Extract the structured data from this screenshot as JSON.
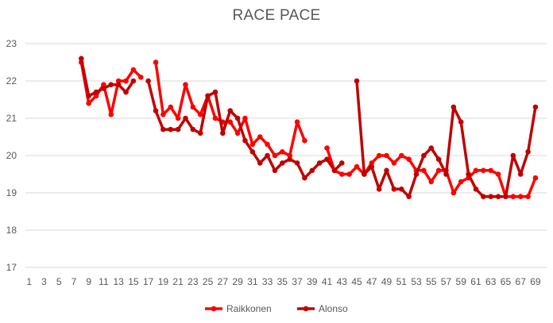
{
  "chart_data": {
    "type": "line",
    "title": "RACE PACE",
    "xlabel": "",
    "ylabel": "",
    "xlim": [
      1,
      70
    ],
    "ylim": [
      17,
      23
    ],
    "y_ticks": [
      17,
      18,
      19,
      20,
      21,
      22,
      23
    ],
    "x_tick_labels": [
      1,
      3,
      5,
      7,
      9,
      11,
      13,
      15,
      17,
      19,
      21,
      23,
      25,
      27,
      29,
      31,
      33,
      35,
      37,
      39,
      41,
      43,
      45,
      47,
      49,
      51,
      53,
      55,
      57,
      59,
      61,
      63,
      65,
      67,
      69
    ],
    "grid": "horizontal",
    "legend_position": "bottom",
    "series": [
      {
        "name": "Raikkonen",
        "color": "#ff0000",
        "points": [
          [
            8,
            22.5
          ],
          [
            9,
            21.4
          ],
          [
            10,
            21.6
          ],
          [
            11,
            21.9
          ],
          [
            12,
            21.1
          ],
          [
            13,
            22.0
          ],
          [
            14,
            22.0
          ],
          [
            15,
            22.3
          ],
          [
            16,
            22.1
          ],
          [
            18,
            22.5
          ],
          [
            19,
            21.1
          ],
          [
            20,
            21.3
          ],
          [
            21,
            21.0
          ],
          [
            22,
            21.9
          ],
          [
            23,
            21.3
          ],
          [
            24,
            21.1
          ],
          [
            25,
            21.6
          ],
          [
            26,
            21.0
          ],
          [
            27,
            20.9
          ],
          [
            28,
            20.9
          ],
          [
            29,
            20.6
          ],
          [
            30,
            21.0
          ],
          [
            31,
            20.3
          ],
          [
            32,
            20.5
          ],
          [
            33,
            20.3
          ],
          [
            34,
            20.0
          ],
          [
            35,
            20.1
          ],
          [
            36,
            20.0
          ],
          [
            37,
            20.9
          ],
          [
            38,
            20.4
          ],
          [
            41,
            20.2
          ],
          [
            42,
            19.6
          ],
          [
            43,
            19.5
          ],
          [
            44,
            19.5
          ],
          [
            45,
            19.7
          ],
          [
            46,
            19.5
          ],
          [
            47,
            19.8
          ],
          [
            48,
            20.0
          ],
          [
            49,
            20.0
          ],
          [
            50,
            19.8
          ],
          [
            51,
            20.0
          ],
          [
            52,
            19.9
          ],
          [
            53,
            19.6
          ],
          [
            54,
            19.6
          ],
          [
            55,
            19.3
          ],
          [
            56,
            19.6
          ],
          [
            57,
            19.6
          ],
          [
            58,
            19.0
          ],
          [
            59,
            19.3
          ],
          [
            60,
            19.4
          ],
          [
            61,
            19.6
          ],
          [
            62,
            19.6
          ],
          [
            63,
            19.6
          ],
          [
            64,
            19.5
          ],
          [
            65,
            18.9
          ],
          [
            66,
            18.9
          ],
          [
            67,
            18.9
          ],
          [
            68,
            18.9
          ],
          [
            69,
            19.4
          ]
        ]
      },
      {
        "name": "Alonso",
        "color": "#c00000",
        "points": [
          [
            8,
            22.6
          ],
          [
            9,
            21.6
          ],
          [
            10,
            21.7
          ],
          [
            11,
            21.8
          ],
          [
            12,
            21.9
          ],
          [
            13,
            21.9
          ],
          [
            14,
            21.7
          ],
          [
            15,
            22.0
          ],
          [
            17,
            22.0
          ],
          [
            18,
            21.2
          ],
          [
            19,
            20.7
          ],
          [
            20,
            20.7
          ],
          [
            21,
            20.7
          ],
          [
            22,
            21.0
          ],
          [
            23,
            20.7
          ],
          [
            24,
            20.6
          ],
          [
            25,
            21.6
          ],
          [
            26,
            21.7
          ],
          [
            27,
            20.6
          ],
          [
            28,
            21.2
          ],
          [
            29,
            21.0
          ],
          [
            30,
            20.4
          ],
          [
            31,
            20.1
          ],
          [
            32,
            19.8
          ],
          [
            33,
            20.0
          ],
          [
            34,
            19.6
          ],
          [
            35,
            19.8
          ],
          [
            36,
            19.9
          ],
          [
            37,
            19.8
          ],
          [
            38,
            19.4
          ],
          [
            39,
            19.6
          ],
          [
            40,
            19.8
          ],
          [
            41,
            19.9
          ],
          [
            42,
            19.6
          ],
          [
            43,
            19.8
          ],
          [
            45,
            22.0
          ],
          [
            46,
            19.5
          ],
          [
            47,
            19.7
          ],
          [
            48,
            19.1
          ],
          [
            49,
            19.6
          ],
          [
            50,
            19.1
          ],
          [
            51,
            19.1
          ],
          [
            52,
            18.9
          ],
          [
            53,
            19.5
          ],
          [
            54,
            20.0
          ],
          [
            55,
            20.2
          ],
          [
            56,
            19.9
          ],
          [
            57,
            19.5
          ],
          [
            58,
            21.3
          ],
          [
            59,
            20.9
          ],
          [
            60,
            19.5
          ],
          [
            61,
            19.1
          ],
          [
            62,
            18.9
          ],
          [
            63,
            18.9
          ],
          [
            64,
            18.9
          ],
          [
            65,
            18.9
          ],
          [
            66,
            20.0
          ],
          [
            67,
            19.5
          ],
          [
            68,
            20.1
          ],
          [
            69,
            21.3
          ]
        ]
      }
    ]
  }
}
